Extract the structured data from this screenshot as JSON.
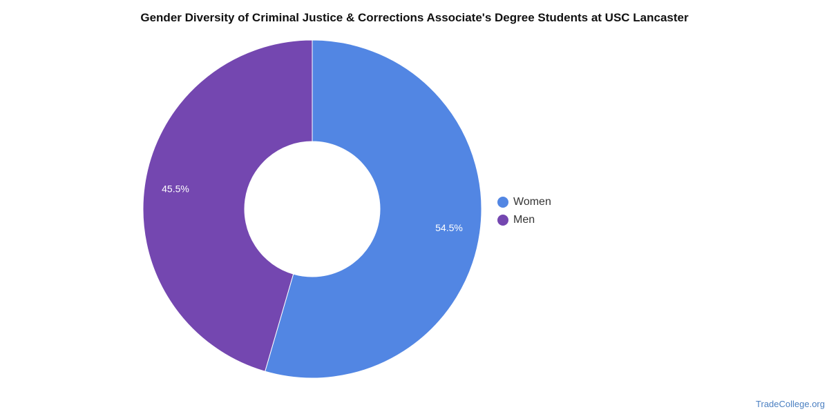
{
  "title": "Gender Diversity of Criminal Justice & Corrections Associate's Degree Students at USC Lancaster",
  "chart_data": {
    "type": "pie",
    "variant": "donut",
    "title": "Gender Diversity of Criminal Justice & Corrections Associate's Degree Students at USC Lancaster",
    "legend_position": "right",
    "slices": [
      {
        "label": "Women",
        "value": 54.5,
        "display": "54.5%",
        "color": "#5286e3"
      },
      {
        "label": "Men",
        "value": 45.5,
        "display": "45.5%",
        "color": "#7447b0"
      }
    ]
  },
  "legend": [
    {
      "label": "Women",
      "color": "#5286e3"
    },
    {
      "label": "Men",
      "color": "#7447b0"
    }
  ],
  "credit": "TradeCollege.org"
}
